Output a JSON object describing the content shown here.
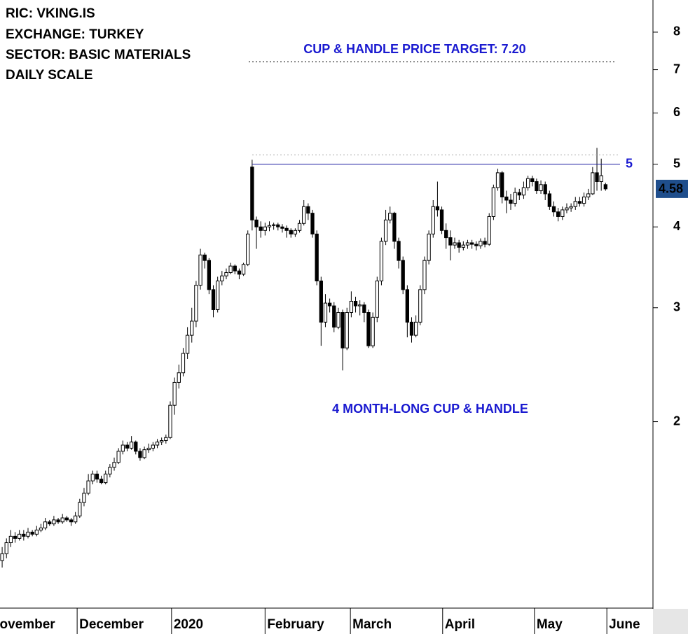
{
  "chart_data": {
    "type": "candlestick",
    "log_scale": true,
    "up_color": "#ffffff",
    "down_color": "#000000",
    "edge_color": "#000000",
    "x": [
      0,
      1,
      2,
      3,
      4,
      5,
      6,
      7,
      8,
      9,
      10,
      11,
      12,
      13,
      14,
      15,
      16,
      17,
      18,
      19,
      20,
      21,
      22,
      23,
      24,
      25,
      26,
      27,
      28,
      29,
      30,
      31,
      32,
      33,
      34,
      35,
      36,
      37,
      38,
      39,
      40,
      41,
      42,
      43,
      44,
      45,
      46,
      47,
      48,
      49,
      50,
      51,
      52,
      53,
      54,
      55,
      56,
      57,
      58,
      59,
      60,
      61,
      62,
      63,
      64,
      65,
      66,
      67,
      68,
      69,
      70,
      71,
      72,
      73,
      74,
      75,
      76,
      77,
      78,
      79,
      80,
      81,
      82,
      83,
      84,
      85,
      86,
      87,
      88,
      89,
      90,
      91,
      92,
      93,
      94,
      95,
      96,
      97,
      98,
      99,
      100,
      101,
      102,
      103,
      104,
      105,
      106,
      107,
      108,
      109,
      110,
      111,
      112,
      113,
      114,
      115,
      116,
      117,
      118,
      119,
      120,
      121,
      122,
      123,
      124,
      125,
      126,
      127,
      128,
      129,
      130,
      131,
      132,
      133,
      134,
      135,
      136,
      137,
      138,
      139,
      140
    ],
    "open": [
      1.22,
      1.25,
      1.3,
      1.33,
      1.32,
      1.34,
      1.33,
      1.35,
      1.34,
      1.36,
      1.37,
      1.4,
      1.39,
      1.41,
      1.4,
      1.42,
      1.41,
      1.4,
      1.43,
      1.5,
      1.55,
      1.62,
      1.66,
      1.63,
      1.61,
      1.66,
      1.7,
      1.73,
      1.8,
      1.84,
      1.82,
      1.86,
      1.8,
      1.76,
      1.81,
      1.82,
      1.84,
      1.86,
      1.87,
      1.89,
      2.12,
      2.3,
      2.38,
      2.55,
      2.72,
      2.86,
      3.25,
      3.62,
      3.55,
      3.2,
      2.98,
      3.3,
      3.36,
      3.4,
      3.48,
      3.42,
      3.38,
      3.5,
      4.95,
      4.1,
      4.0,
      3.95,
      4.0,
      4.02,
      4.03,
      4.0,
      3.98,
      3.95,
      3.9,
      3.95,
      4.05,
      4.3,
      4.2,
      3.9,
      3.3,
      2.85,
      3.05,
      3.02,
      2.8,
      2.95,
      2.6,
      2.95,
      3.07,
      3.02,
      3.03,
      2.95,
      2.62,
      2.9,
      3.3,
      3.8,
      4.1,
      4.2,
      3.8,
      3.55,
      3.2,
      2.85,
      2.72,
      2.85,
      3.2,
      3.55,
      3.9,
      4.3,
      4.25,
      3.95,
      3.85,
      3.75,
      3.78,
      3.72,
      3.75,
      3.78,
      3.76,
      3.74,
      3.8,
      3.76,
      4.15,
      4.6,
      4.85,
      4.45,
      4.4,
      4.35,
      4.52,
      4.48,
      4.6,
      4.75,
      4.7,
      4.55,
      4.65,
      4.5,
      4.3,
      4.22,
      4.15,
      4.25,
      4.28,
      4.3,
      4.38,
      4.35,
      4.45,
      4.5,
      4.85,
      4.7,
      4.65
    ],
    "high": [
      1.28,
      1.32,
      1.36,
      1.35,
      1.36,
      1.36,
      1.37,
      1.36,
      1.38,
      1.39,
      1.42,
      1.41,
      1.43,
      1.42,
      1.44,
      1.43,
      1.42,
      1.45,
      1.52,
      1.58,
      1.66,
      1.68,
      1.68,
      1.65,
      1.68,
      1.72,
      1.76,
      1.82,
      1.87,
      1.86,
      1.9,
      1.87,
      1.82,
      1.83,
      1.85,
      1.86,
      1.88,
      1.89,
      1.91,
      2.15,
      2.34,
      2.45,
      2.6,
      2.8,
      3.0,
      3.3,
      3.7,
      3.65,
      3.58,
      3.25,
      3.35,
      3.42,
      3.45,
      3.52,
      3.5,
      3.45,
      3.52,
      3.95,
      5.08,
      4.15,
      4.08,
      4.06,
      4.08,
      4.06,
      4.06,
      4.04,
      4.02,
      3.98,
      3.98,
      4.1,
      4.4,
      4.35,
      4.25,
      3.95,
      3.35,
      3.15,
      3.1,
      3.06,
      3.0,
      2.98,
      3.0,
      3.18,
      3.12,
      3.08,
      3.06,
      2.98,
      2.95,
      3.35,
      3.85,
      4.25,
      4.3,
      4.22,
      3.85,
      3.6,
      3.25,
      2.9,
      2.92,
      3.25,
      3.6,
      3.95,
      4.4,
      4.7,
      4.3,
      4.05,
      3.95,
      3.85,
      3.82,
      3.8,
      3.82,
      3.82,
      3.8,
      3.84,
      3.85,
      4.2,
      4.65,
      4.92,
      4.88,
      4.55,
      4.5,
      4.6,
      4.58,
      4.7,
      4.8,
      4.8,
      4.75,
      4.72,
      4.7,
      4.55,
      4.38,
      4.28,
      4.3,
      4.35,
      4.35,
      4.45,
      4.45,
      4.52,
      4.58,
      4.95,
      5.3,
      5.1,
      4.68
    ],
    "low": [
      1.19,
      1.23,
      1.28,
      1.3,
      1.31,
      1.31,
      1.32,
      1.33,
      1.33,
      1.35,
      1.36,
      1.38,
      1.38,
      1.39,
      1.39,
      1.4,
      1.38,
      1.39,
      1.42,
      1.48,
      1.54,
      1.6,
      1.61,
      1.6,
      1.6,
      1.64,
      1.68,
      1.72,
      1.78,
      1.8,
      1.81,
      1.78,
      1.74,
      1.75,
      1.79,
      1.8,
      1.82,
      1.84,
      1.85,
      1.88,
      2.05,
      2.25,
      2.35,
      2.5,
      2.65,
      2.8,
      3.2,
      3.45,
      3.15,
      2.9,
      2.95,
      3.25,
      3.32,
      3.38,
      3.38,
      3.32,
      3.36,
      3.48,
      3.95,
      3.7,
      3.85,
      3.88,
      3.94,
      3.96,
      3.95,
      3.92,
      3.85,
      3.85,
      3.86,
      3.92,
      4.02,
      4.1,
      3.85,
      3.25,
      2.62,
      2.8,
      2.95,
      2.75,
      2.78,
      2.4,
      2.58,
      2.9,
      2.95,
      2.92,
      2.85,
      2.6,
      2.6,
      2.85,
      3.25,
      3.75,
      4.05,
      3.7,
      3.45,
      3.15,
      2.7,
      2.65,
      2.7,
      2.82,
      3.15,
      3.5,
      3.85,
      4.15,
      3.9,
      3.7,
      3.55,
      3.7,
      3.65,
      3.68,
      3.7,
      3.7,
      3.68,
      3.7,
      3.72,
      3.74,
      4.1,
      4.55,
      4.35,
      4.2,
      4.25,
      4.3,
      4.4,
      4.42,
      4.55,
      4.62,
      4.5,
      4.5,
      4.4,
      4.25,
      4.15,
      4.08,
      4.1,
      4.2,
      4.22,
      4.25,
      4.3,
      4.3,
      4.4,
      4.48,
      4.55,
      4.55,
      4.55
    ],
    "close": [
      1.25,
      1.3,
      1.33,
      1.32,
      1.34,
      1.33,
      1.35,
      1.34,
      1.36,
      1.37,
      1.4,
      1.39,
      1.41,
      1.4,
      1.42,
      1.41,
      1.4,
      1.43,
      1.5,
      1.55,
      1.62,
      1.66,
      1.63,
      1.61,
      1.66,
      1.7,
      1.73,
      1.8,
      1.84,
      1.82,
      1.86,
      1.8,
      1.76,
      1.81,
      1.82,
      1.84,
      1.86,
      1.87,
      1.89,
      2.12,
      2.3,
      2.38,
      2.55,
      2.72,
      2.86,
      3.25,
      3.62,
      3.55,
      3.2,
      2.98,
      3.3,
      3.36,
      3.4,
      3.48,
      3.42,
      3.38,
      3.5,
      3.9,
      4.1,
      4.0,
      3.95,
      4.0,
      4.02,
      4.03,
      4.0,
      3.98,
      3.95,
      3.9,
      3.95,
      4.05,
      4.3,
      4.2,
      3.9,
      3.3,
      2.85,
      3.05,
      3.02,
      2.8,
      2.95,
      2.6,
      2.95,
      3.07,
      3.02,
      3.03,
      2.95,
      2.62,
      2.9,
      3.3,
      3.8,
      4.1,
      4.2,
      3.8,
      3.55,
      3.2,
      2.85,
      2.72,
      2.85,
      3.2,
      3.55,
      3.9,
      4.3,
      4.25,
      3.95,
      3.85,
      3.75,
      3.78,
      3.72,
      3.75,
      3.78,
      3.76,
      3.74,
      3.8,
      3.76,
      4.15,
      4.6,
      4.85,
      4.45,
      4.4,
      4.35,
      4.52,
      4.48,
      4.6,
      4.75,
      4.7,
      4.55,
      4.65,
      4.5,
      4.3,
      4.22,
      4.15,
      4.25,
      4.28,
      4.3,
      4.38,
      4.35,
      4.45,
      4.5,
      4.85,
      4.7,
      4.8,
      4.58
    ],
    "xlim": [
      -0.5,
      151
    ],
    "xticks": [
      {
        "value": -3.3,
        "label": "November"
      },
      {
        "value": 17.4,
        "label": "December"
      },
      {
        "value": 39.3,
        "label": "2020"
      },
      {
        "value": 61.0,
        "label": "February"
      },
      {
        "value": 80.8,
        "label": "March"
      },
      {
        "value": 102.2,
        "label": "April"
      },
      {
        "value": 123.5,
        "label": "May"
      },
      {
        "value": 140.3,
        "label": "June"
      }
    ],
    "ylim": [
      1.03,
      8.97
    ],
    "yticks": [
      2,
      3,
      4,
      5,
      6,
      7,
      8
    ],
    "hlines": [
      {
        "value": 7.2,
        "style": "dotted",
        "color": "#000000"
      },
      {
        "value": 5.17,
        "style": "dotted",
        "color": "#aaaaaa"
      },
      {
        "value": 5,
        "style": "solid",
        "color": "#1a1aa0"
      }
    ],
    "info": [
      "RIC: VKING.IS",
      "EXCHANGE: TURKEY",
      "SECTOR: BASIC MATERIALS",
      "DAILY SCALE"
    ],
    "annotations": [
      "CUP & HANDLE PRICE TARGET: 7.20",
      "4 MONTH-LONG CUP & HANDLE"
    ],
    "last_price_color": "#1f4e8c"
  }
}
